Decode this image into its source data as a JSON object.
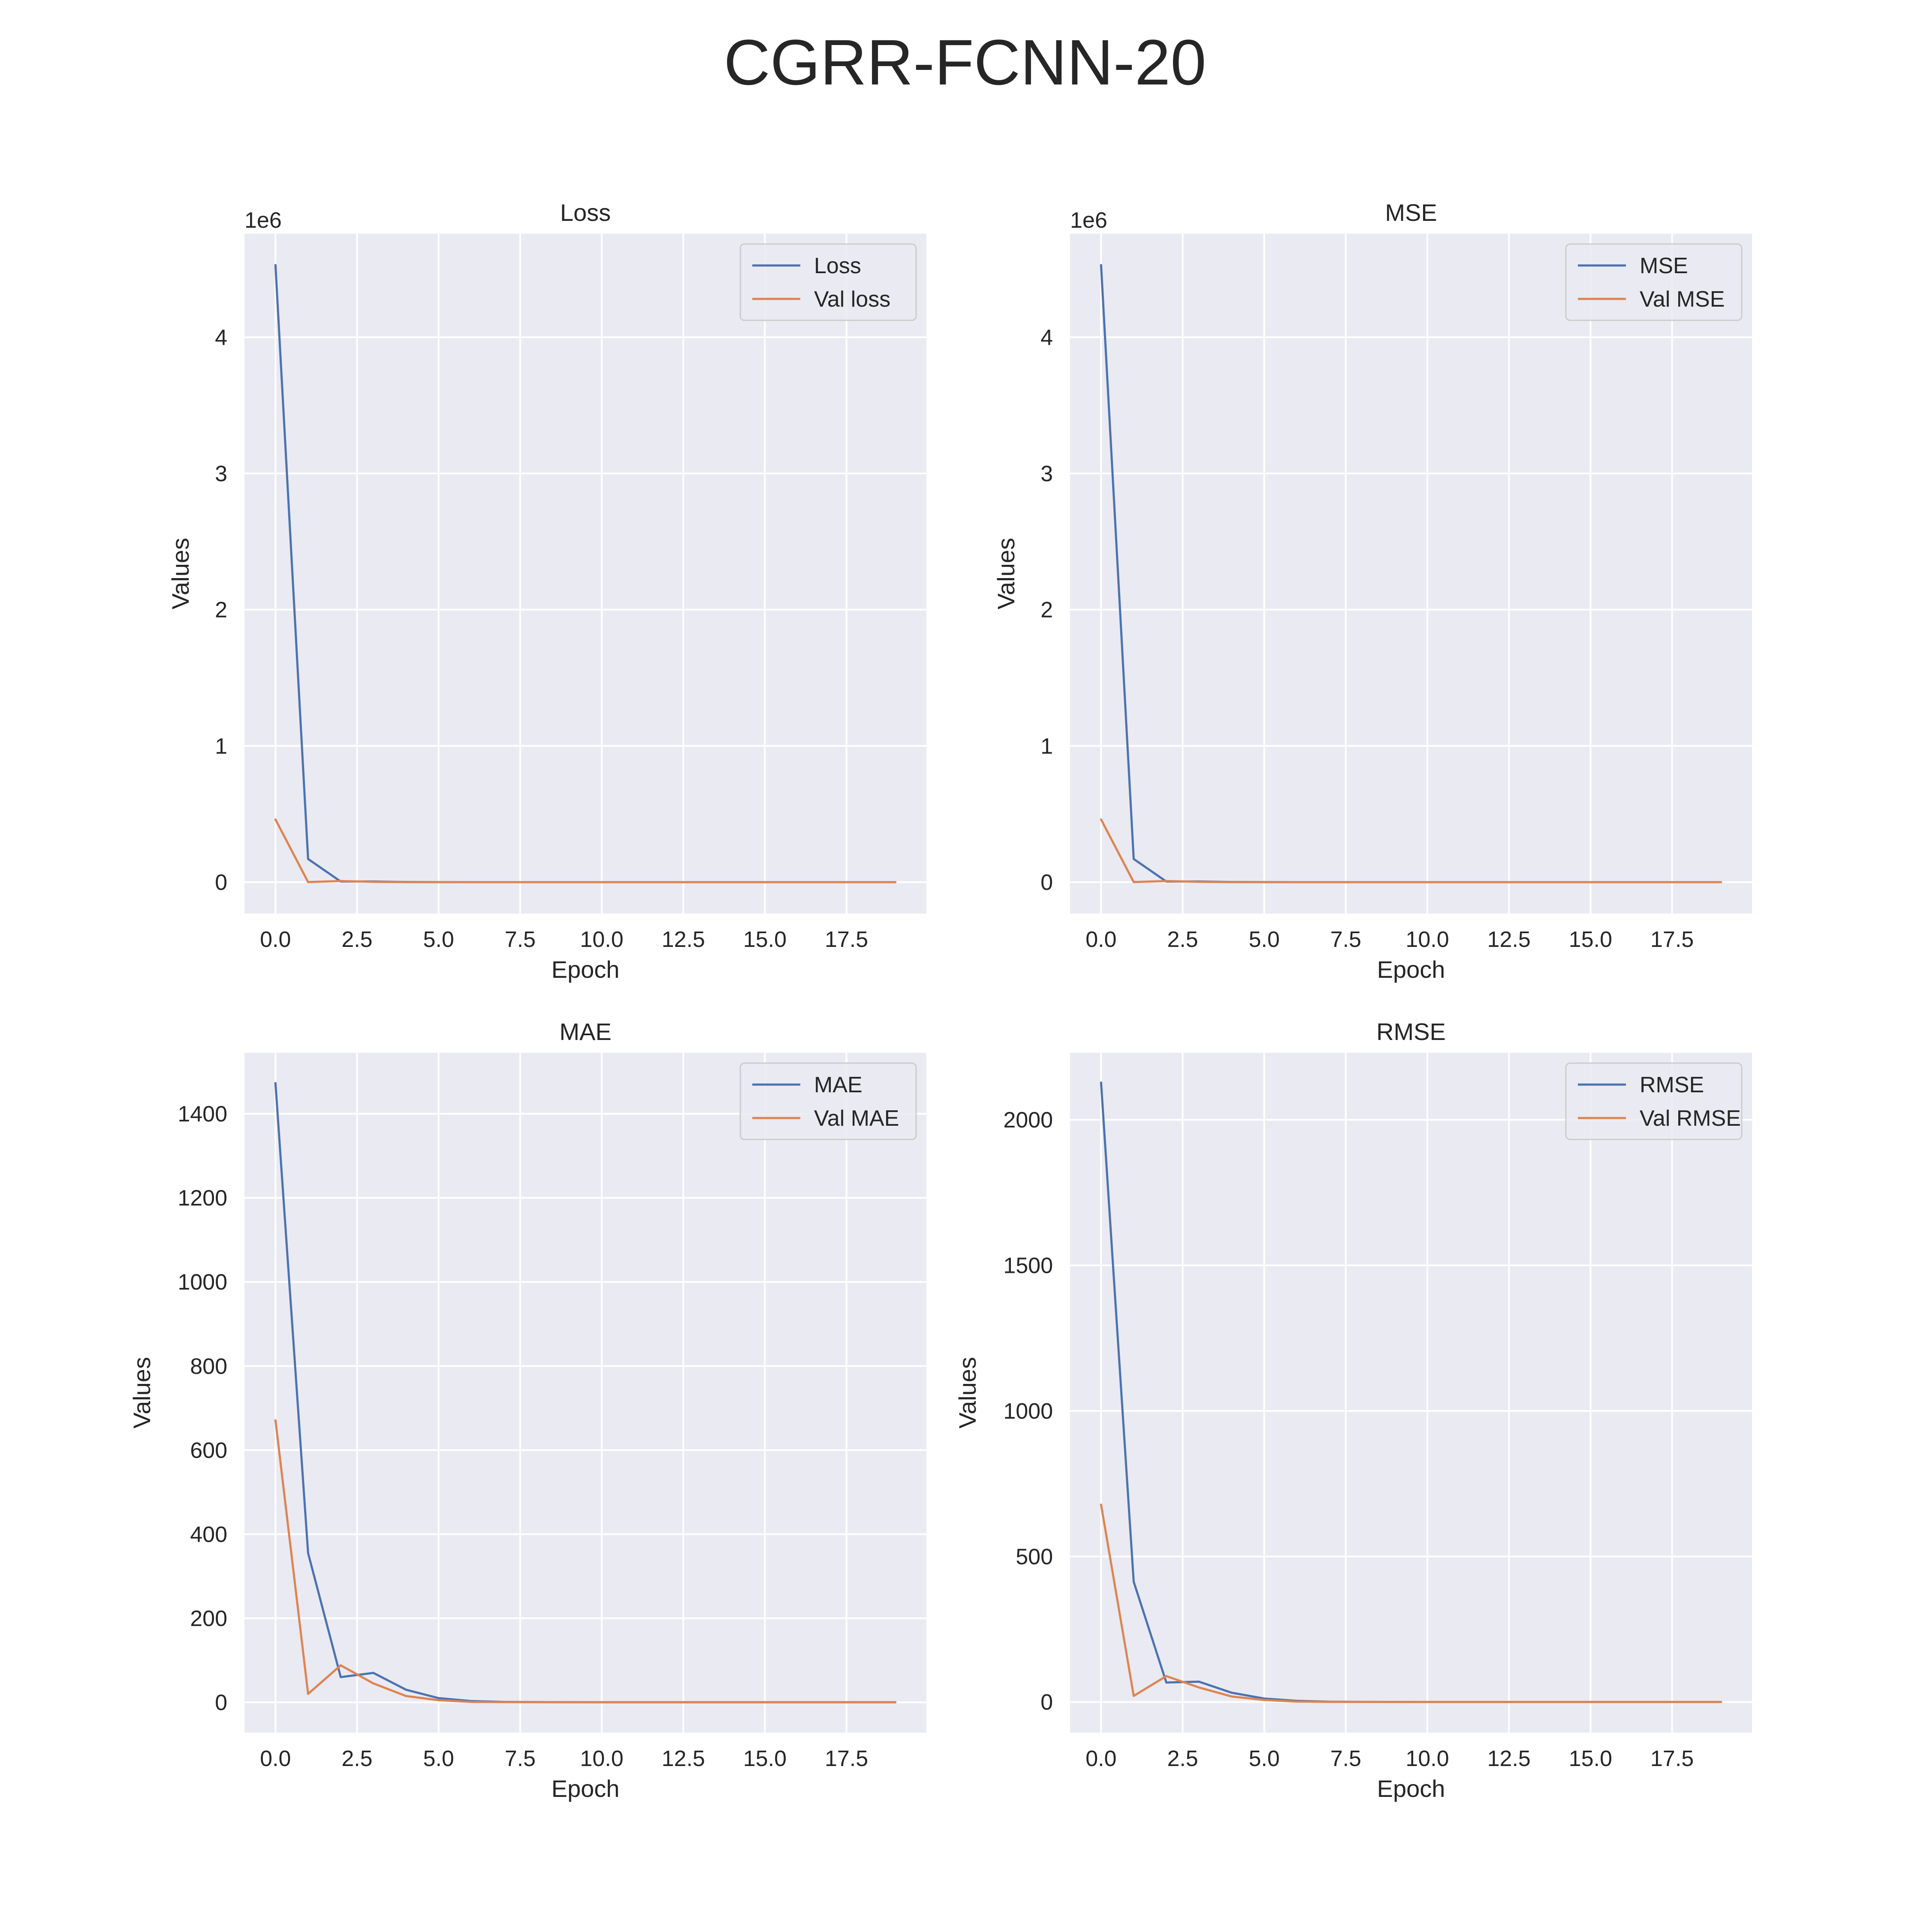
{
  "figure": {
    "title": "CGRR-FCNN-20"
  },
  "chart_data": [
    {
      "type": "line",
      "title": "Loss",
      "xlabel": "Epoch",
      "ylabel": "Values",
      "offset_text": "1e6",
      "xlim": [
        -0.95,
        19.95
      ],
      "ylim": [
        -230000,
        4760000
      ],
      "xticks": [
        0,
        2.5,
        5,
        7.5,
        10,
        12.5,
        15,
        17.5
      ],
      "xtick_labels": [
        "0.0",
        "2.5",
        "5.0",
        "7.5",
        "10.0",
        "12.5",
        "15.0",
        "17.5"
      ],
      "yticks": [
        0,
        1000000,
        2000000,
        3000000,
        4000000
      ],
      "ytick_labels": [
        "0",
        "1",
        "2",
        "3",
        "4"
      ],
      "grid": true,
      "legend_position": "top-right",
      "x": [
        0,
        1,
        2,
        3,
        4,
        5,
        6,
        7,
        8,
        9,
        10,
        11,
        12,
        13,
        14,
        15,
        16,
        17,
        18,
        19
      ],
      "series": [
        {
          "name": "Loss",
          "color": "#4c72b0",
          "values": [
            4530000,
            170000,
            4500,
            4900,
            1000,
            140,
            20,
            3,
            1,
            1,
            1,
            1,
            1,
            1,
            1,
            1,
            1,
            1,
            1,
            1
          ]
        },
        {
          "name": "Val loss",
          "color": "#dd8452",
          "values": [
            460000,
            450,
            8000,
            2000,
            350,
            50,
            5,
            2,
            1,
            1,
            1,
            1,
            1,
            1,
            1,
            1,
            1,
            1,
            1,
            1
          ]
        }
      ]
    },
    {
      "type": "line",
      "title": "MSE",
      "xlabel": "Epoch",
      "ylabel": "Values",
      "offset_text": "1e6",
      "xlim": [
        -0.95,
        19.95
      ],
      "ylim": [
        -230000,
        4760000
      ],
      "xticks": [
        0,
        2.5,
        5,
        7.5,
        10,
        12.5,
        15,
        17.5
      ],
      "xtick_labels": [
        "0.0",
        "2.5",
        "5.0",
        "7.5",
        "10.0",
        "12.5",
        "15.0",
        "17.5"
      ],
      "yticks": [
        0,
        1000000,
        2000000,
        3000000,
        4000000
      ],
      "ytick_labels": [
        "0",
        "1",
        "2",
        "3",
        "4"
      ],
      "grid": true,
      "legend_position": "top-right",
      "x": [
        0,
        1,
        2,
        3,
        4,
        5,
        6,
        7,
        8,
        9,
        10,
        11,
        12,
        13,
        14,
        15,
        16,
        17,
        18,
        19
      ],
      "series": [
        {
          "name": "MSE",
          "color": "#4c72b0",
          "values": [
            4530000,
            170000,
            4500,
            4900,
            1000,
            140,
            20,
            3,
            1,
            1,
            1,
            1,
            1,
            1,
            1,
            1,
            1,
            1,
            1,
            1
          ]
        },
        {
          "name": "Val MSE",
          "color": "#dd8452",
          "values": [
            460000,
            450,
            8000,
            2000,
            350,
            50,
            5,
            2,
            1,
            1,
            1,
            1,
            1,
            1,
            1,
            1,
            1,
            1,
            1,
            1
          ]
        }
      ]
    },
    {
      "type": "line",
      "title": "MAE",
      "xlabel": "Epoch",
      "ylabel": "Values",
      "xlim": [
        -0.95,
        19.95
      ],
      "ylim": [
        -72,
        1545
      ],
      "xticks": [
        0,
        2.5,
        5,
        7.5,
        10,
        12.5,
        15,
        17.5
      ],
      "xtick_labels": [
        "0.0",
        "2.5",
        "5.0",
        "7.5",
        "10.0",
        "12.5",
        "15.0",
        "17.5"
      ],
      "yticks": [
        0,
        200,
        400,
        600,
        800,
        1000,
        1200,
        1400
      ],
      "ytick_labels": [
        "0",
        "200",
        "400",
        "600",
        "800",
        "1000",
        "1200",
        "1400"
      ],
      "grid": true,
      "legend_position": "top-right",
      "x": [
        0,
        1,
        2,
        3,
        4,
        5,
        6,
        7,
        8,
        9,
        10,
        11,
        12,
        13,
        14,
        15,
        16,
        17,
        18,
        19
      ],
      "series": [
        {
          "name": "MAE",
          "color": "#4c72b0",
          "values": [
            1473,
            355,
            60,
            70,
            30,
            10,
            3,
            1,
            0.5,
            0.3,
            0.2,
            0.2,
            0.2,
            0.2,
            0.2,
            0.2,
            0.2,
            0.2,
            0.2,
            0.2
          ]
        },
        {
          "name": "Val MAE",
          "color": "#dd8452",
          "values": [
            671,
            20,
            88,
            45,
            15,
            5,
            1,
            0.5,
            0.3,
            0.2,
            0.2,
            0.2,
            0.2,
            0.2,
            0.2,
            0.2,
            0.2,
            0.2,
            0.2,
            0.2
          ]
        }
      ]
    },
    {
      "type": "line",
      "title": "RMSE",
      "xlabel": "Epoch",
      "ylabel": "Values",
      "xlim": [
        -0.95,
        19.95
      ],
      "ylim": [
        -105,
        2230
      ],
      "xticks": [
        0,
        2.5,
        5,
        7.5,
        10,
        12.5,
        15,
        17.5
      ],
      "xtick_labels": [
        "0.0",
        "2.5",
        "5.0",
        "7.5",
        "10.0",
        "12.5",
        "15.0",
        "17.5"
      ],
      "yticks": [
        0,
        500,
        1000,
        1500,
        2000
      ],
      "ytick_labels": [
        "0",
        "500",
        "1000",
        "1500",
        "2000"
      ],
      "grid": true,
      "legend_position": "top-right",
      "x": [
        0,
        1,
        2,
        3,
        4,
        5,
        6,
        7,
        8,
        9,
        10,
        11,
        12,
        13,
        14,
        15,
        16,
        17,
        18,
        19
      ],
      "series": [
        {
          "name": "RMSE",
          "color": "#4c72b0",
          "values": [
            2128,
            413,
            67,
            70,
            32,
            12,
            4,
            1,
            0.5,
            0.3,
            0.2,
            0.2,
            0.2,
            0.2,
            0.2,
            0.2,
            0.2,
            0.2,
            0.2,
            0.2
          ]
        },
        {
          "name": "Val RMSE",
          "color": "#dd8452",
          "values": [
            678,
            21,
            89,
            50,
            19,
            7,
            1.5,
            0.5,
            0.3,
            0.2,
            0.2,
            0.2,
            0.2,
            0.2,
            0.2,
            0.2,
            0.2,
            0.2,
            0.2,
            0.2
          ]
        }
      ]
    }
  ]
}
